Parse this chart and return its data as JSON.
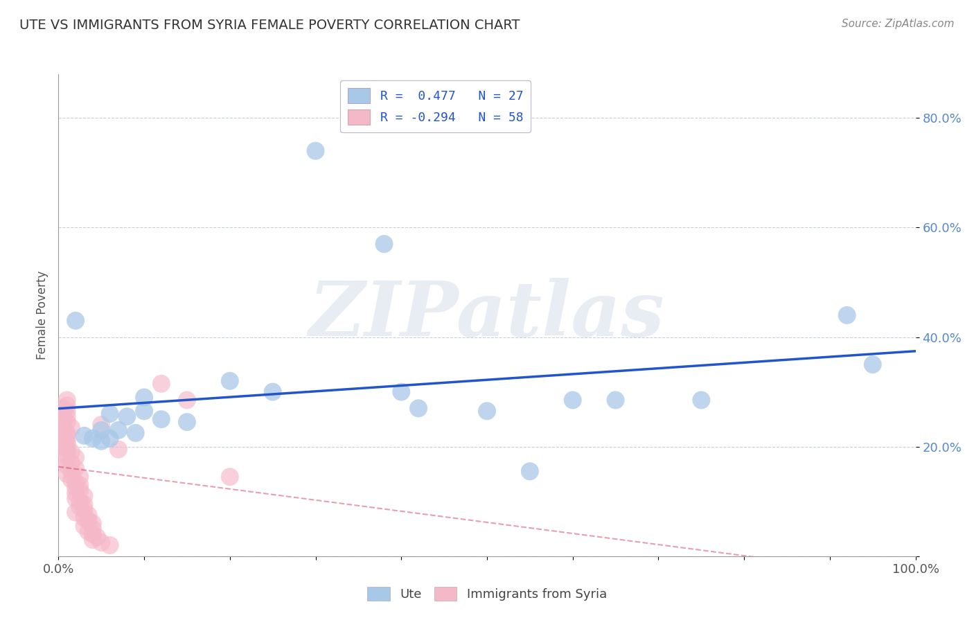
{
  "title": "UTE VS IMMIGRANTS FROM SYRIA FEMALE POVERTY CORRELATION CHART",
  "source": "Source: ZipAtlas.com",
  "ylabel": "Female Poverty",
  "xlim": [
    0.0,
    1.0
  ],
  "ylim": [
    0.0,
    0.88
  ],
  "xticks": [
    0.0,
    0.2,
    0.4,
    0.6,
    0.8,
    1.0
  ],
  "xticklabels": [
    "0.0%",
    "",
    "",
    "",
    "",
    "100.0%"
  ],
  "ytick_positions": [
    0.0,
    0.2,
    0.4,
    0.6,
    0.8
  ],
  "yticklabels": [
    "",
    "20.0%",
    "40.0%",
    "60.0%",
    "80.0%"
  ],
  "ute_color": "#a8c8e8",
  "syria_color": "#f5b8c8",
  "ute_line_color": "#2255cc",
  "syria_line_color": "#d04060",
  "R_ute": 0.477,
  "N_ute": 27,
  "R_syria": -0.294,
  "N_syria": 58,
  "legend_R_color": "#2255cc",
  "watermark_color": "#ccd8e8",
  "ute_points": [
    [
      0.3,
      0.74
    ],
    [
      0.38,
      0.57
    ],
    [
      0.02,
      0.43
    ],
    [
      0.92,
      0.44
    ],
    [
      0.95,
      0.35
    ],
    [
      0.2,
      0.32
    ],
    [
      0.25,
      0.3
    ],
    [
      0.4,
      0.3
    ],
    [
      0.1,
      0.29
    ],
    [
      0.6,
      0.285
    ],
    [
      0.65,
      0.285
    ],
    [
      0.75,
      0.285
    ],
    [
      0.42,
      0.27
    ],
    [
      0.5,
      0.265
    ],
    [
      0.1,
      0.265
    ],
    [
      0.06,
      0.26
    ],
    [
      0.08,
      0.255
    ],
    [
      0.12,
      0.25
    ],
    [
      0.15,
      0.245
    ],
    [
      0.05,
      0.23
    ],
    [
      0.07,
      0.23
    ],
    [
      0.09,
      0.225
    ],
    [
      0.03,
      0.22
    ],
    [
      0.04,
      0.215
    ],
    [
      0.06,
      0.215
    ],
    [
      0.05,
      0.21
    ],
    [
      0.55,
      0.155
    ]
  ],
  "syria_points": [
    [
      0.01,
      0.285
    ],
    [
      0.01,
      0.275
    ],
    [
      0.005,
      0.27
    ],
    [
      0.01,
      0.265
    ],
    [
      0.005,
      0.26
    ],
    [
      0.01,
      0.255
    ],
    [
      0.005,
      0.25
    ],
    [
      0.01,
      0.245
    ],
    [
      0.005,
      0.24
    ],
    [
      0.015,
      0.235
    ],
    [
      0.005,
      0.23
    ],
    [
      0.01,
      0.225
    ],
    [
      0.01,
      0.22
    ],
    [
      0.005,
      0.215
    ],
    [
      0.01,
      0.21
    ],
    [
      0.01,
      0.205
    ],
    [
      0.005,
      0.2
    ],
    [
      0.01,
      0.195
    ],
    [
      0.015,
      0.19
    ],
    [
      0.01,
      0.185
    ],
    [
      0.02,
      0.18
    ],
    [
      0.005,
      0.175
    ],
    [
      0.015,
      0.17
    ],
    [
      0.01,
      0.165
    ],
    [
      0.02,
      0.16
    ],
    [
      0.015,
      0.155
    ],
    [
      0.01,
      0.15
    ],
    [
      0.025,
      0.145
    ],
    [
      0.015,
      0.14
    ],
    [
      0.02,
      0.135
    ],
    [
      0.025,
      0.13
    ],
    [
      0.02,
      0.125
    ],
    [
      0.025,
      0.12
    ],
    [
      0.02,
      0.115
    ],
    [
      0.03,
      0.11
    ],
    [
      0.02,
      0.105
    ],
    [
      0.025,
      0.1
    ],
    [
      0.03,
      0.095
    ],
    [
      0.025,
      0.09
    ],
    [
      0.03,
      0.085
    ],
    [
      0.02,
      0.08
    ],
    [
      0.035,
      0.075
    ],
    [
      0.03,
      0.07
    ],
    [
      0.035,
      0.065
    ],
    [
      0.04,
      0.06
    ],
    [
      0.03,
      0.055
    ],
    [
      0.04,
      0.05
    ],
    [
      0.035,
      0.045
    ],
    [
      0.04,
      0.04
    ],
    [
      0.045,
      0.035
    ],
    [
      0.04,
      0.03
    ],
    [
      0.05,
      0.025
    ],
    [
      0.06,
      0.02
    ],
    [
      0.12,
      0.315
    ],
    [
      0.15,
      0.285
    ],
    [
      0.05,
      0.24
    ],
    [
      0.07,
      0.195
    ],
    [
      0.2,
      0.145
    ]
  ]
}
